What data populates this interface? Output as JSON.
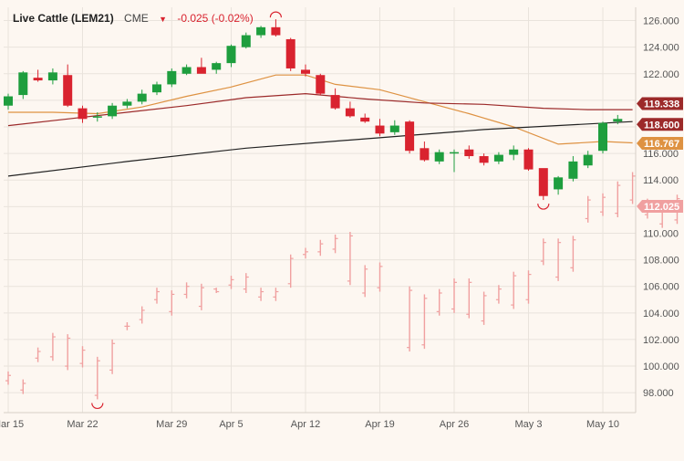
{
  "header": {
    "symbol": "Live Cattle (LEM21)",
    "exchange": "CME",
    "change_arrow": "▼",
    "change": "-0.025 (-0.02%)"
  },
  "colors": {
    "up": "#1e9e3e",
    "down": "#d9232f",
    "grid": "#e9e3dc",
    "background": "#fdf7f1",
    "ma_short": "#de9242",
    "ma_mid": "#9c2a2a",
    "ma_long": "#222222",
    "deferred_bars": "#f0a0a0"
  },
  "price_tags": [
    {
      "label": "119.338",
      "value": 119.338,
      "color": "#9c2a2a"
    },
    {
      "label": "118.600",
      "value": 118.6,
      "color": "#9c2a2a"
    },
    {
      "label": "116.767",
      "value": 116.767,
      "color": "#de9242"
    },
    {
      "label": "112.025",
      "value": 112.025,
      "color": "#f0a0a0"
    }
  ],
  "chart_data": {
    "type": "candlestick",
    "ylim": [
      96.5,
      127
    ],
    "y_ticks": [
      "98.000",
      "100.000",
      "102.000",
      "104.000",
      "106.000",
      "108.000",
      "110.000",
      "112.000",
      "114.000",
      "116.000",
      "118.000",
      "120.000",
      "122.000",
      "124.000",
      "126.000"
    ],
    "x_tick_labels": [
      "Mar 15",
      "Mar 22",
      "Mar 29",
      "Apr 5",
      "Apr 12",
      "Apr 19",
      "Apr 26",
      "May 3",
      "May 10"
    ],
    "x_tick_index": [
      0,
      5,
      11,
      15,
      20,
      25,
      30,
      35,
      40
    ],
    "dates": [
      "Mar 15",
      "Mar 16",
      "Mar 17",
      "Mar 18",
      "Mar 19",
      "Mar 22",
      "Mar 23",
      "Mar 24",
      "Mar 25",
      "Mar 26",
      "Mar 29",
      "Mar 30",
      "Mar 31",
      "Apr 1",
      "Apr 5",
      "Apr 6",
      "Apr 7",
      "Apr 8",
      "Apr 9",
      "Apr 12",
      "Apr 13",
      "Apr 14",
      "Apr 15",
      "Apr 16",
      "Apr 19",
      "Apr 20",
      "Apr 21",
      "Apr 22",
      "Apr 23",
      "Apr 26",
      "Apr 27",
      "Apr 28",
      "Apr 29",
      "Apr 30",
      "May 3",
      "May 4",
      "May 5",
      "May 6",
      "May 7",
      "May 10",
      "May 11",
      "May 12"
    ],
    "ohlc": [
      [
        119.6,
        120.5,
        119.3,
        120.3
      ],
      [
        120.4,
        122.2,
        120.1,
        122.1
      ],
      [
        121.7,
        122.3,
        121.4,
        121.5
      ],
      [
        121.5,
        122.4,
        121.2,
        122.1
      ],
      [
        121.9,
        122.7,
        119.5,
        119.6
      ],
      [
        119.4,
        119.6,
        118.3,
        118.6
      ],
      [
        118.7,
        119.1,
        118.4,
        118.8
      ],
      [
        118.8,
        119.8,
        118.6,
        119.6
      ],
      [
        119.6,
        120.1,
        119.4,
        119.9
      ],
      [
        119.9,
        120.8,
        119.7,
        120.5
      ],
      [
        120.6,
        121.4,
        120.4,
        121.2
      ],
      [
        121.2,
        122.4,
        121.0,
        122.2
      ],
      [
        122.0,
        122.7,
        121.9,
        122.5
      ],
      [
        122.5,
        123.2,
        122.1,
        122.0
      ],
      [
        122.3,
        122.9,
        122.0,
        122.8
      ],
      [
        122.8,
        124.2,
        122.5,
        124.1
      ],
      [
        124.0,
        125.1,
        123.9,
        124.9
      ],
      [
        124.9,
        125.6,
        124.7,
        125.5
      ],
      [
        125.5,
        126.1,
        124.8,
        124.9
      ],
      [
        124.6,
        124.7,
        122.2,
        122.4
      ],
      [
        122.3,
        122.7,
        121.8,
        122.0
      ],
      [
        121.9,
        122.0,
        120.4,
        120.5
      ],
      [
        120.4,
        120.9,
        119.3,
        119.4
      ],
      [
        119.4,
        119.9,
        118.7,
        118.8
      ],
      [
        118.7,
        119.0,
        118.3,
        118.4
      ],
      [
        118.1,
        118.6,
        117.3,
        117.5
      ],
      [
        117.6,
        118.5,
        117.4,
        118.1
      ],
      [
        118.4,
        118.5,
        116.0,
        116.2
      ],
      [
        116.4,
        116.9,
        115.4,
        115.5
      ],
      [
        115.4,
        116.3,
        115.2,
        116.1
      ],
      [
        116.1,
        116.3,
        114.6,
        116.1
      ],
      [
        116.3,
        116.6,
        115.6,
        115.8
      ],
      [
        115.8,
        116.0,
        115.1,
        115.3
      ],
      [
        115.4,
        116.1,
        115.2,
        115.9
      ],
      [
        115.9,
        116.6,
        115.5,
        116.3
      ],
      [
        116.3,
        116.4,
        114.7,
        114.8
      ],
      [
        114.9,
        114.8,
        112.5,
        112.8
      ],
      [
        113.3,
        114.3,
        112.9,
        114.2
      ],
      [
        114.1,
        115.8,
        113.9,
        115.4
      ],
      [
        115.1,
        116.2,
        114.9,
        115.9
      ],
      [
        116.2,
        118.4,
        116.0,
        118.3
      ],
      [
        118.4,
        118.9,
        118.2,
        118.6
      ]
    ],
    "deferred_bars": [
      {
        "i": 0,
        "hi": 99.6,
        "lo": 98.6
      },
      {
        "i": 1,
        "hi": 99.0,
        "lo": 97.9
      },
      {
        "i": 2,
        "hi": 101.4,
        "lo": 100.3
      },
      {
        "i": 3,
        "hi": 102.5,
        "lo": 100.4
      },
      {
        "i": 4,
        "hi": 102.4,
        "lo": 99.7
      },
      {
        "i": 5,
        "hi": 101.5,
        "lo": 99.9
      },
      {
        "i": 6,
        "hi": 100.7,
        "lo": 97.5
      },
      {
        "i": 7,
        "hi": 102.0,
        "lo": 99.4
      },
      {
        "i": 8,
        "hi": 103.3,
        "lo": 102.7
      },
      {
        "i": 9,
        "hi": 104.5,
        "lo": 103.2
      },
      {
        "i": 10,
        "hi": 105.9,
        "lo": 104.7
      },
      {
        "i": 11,
        "hi": 105.7,
        "lo": 103.8
      },
      {
        "i": 12,
        "hi": 106.3,
        "lo": 105.1
      },
      {
        "i": 13,
        "hi": 106.2,
        "lo": 104.2
      },
      {
        "i": 14,
        "hi": 105.9,
        "lo": 105.5
      },
      {
        "i": 15,
        "hi": 106.8,
        "lo": 105.8
      },
      {
        "i": 16,
        "hi": 107.0,
        "lo": 105.5
      },
      {
        "i": 17,
        "hi": 105.9,
        "lo": 104.9
      },
      {
        "i": 18,
        "hi": 105.9,
        "lo": 104.9
      },
      {
        "i": 19,
        "hi": 108.4,
        "lo": 105.9
      },
      {
        "i": 20,
        "hi": 108.9,
        "lo": 108.1
      },
      {
        "i": 21,
        "hi": 109.5,
        "lo": 108.3
      },
      {
        "i": 22,
        "hi": 109.9,
        "lo": 108.5
      },
      {
        "i": 23,
        "hi": 110.1,
        "lo": 106.1
      },
      {
        "i": 24,
        "hi": 107.6,
        "lo": 105.2
      },
      {
        "i": 25,
        "hi": 107.8,
        "lo": 105.6
      },
      {
        "i": 27,
        "hi": 106.0,
        "lo": 101.1
      },
      {
        "i": 28,
        "hi": 105.4,
        "lo": 101.3
      },
      {
        "i": 29,
        "hi": 105.8,
        "lo": 103.8
      },
      {
        "i": 30,
        "hi": 106.6,
        "lo": 104.0
      },
      {
        "i": 31,
        "hi": 106.6,
        "lo": 103.6
      },
      {
        "i": 32,
        "hi": 105.6,
        "lo": 103.1
      },
      {
        "i": 33,
        "hi": 106.1,
        "lo": 104.7
      },
      {
        "i": 34,
        "hi": 107.1,
        "lo": 104.3
      },
      {
        "i": 35,
        "hi": 107.2,
        "lo": 104.7
      },
      {
        "i": 36,
        "hi": 109.6,
        "lo": 107.6
      },
      {
        "i": 37,
        "hi": 109.6,
        "lo": 106.4
      },
      {
        "i": 38,
        "hi": 109.8,
        "lo": 107.1
      },
      {
        "i": 39,
        "hi": 112.8,
        "lo": 110.8
      },
      {
        "i": 40,
        "hi": 113.0,
        "lo": 111.3
      },
      {
        "i": 41,
        "hi": 113.9,
        "lo": 111.2
      },
      {
        "i": 42,
        "hi": 114.6,
        "lo": 112.2
      },
      {
        "i": 43,
        "hi": 112.6,
        "lo": 111.1
      },
      {
        "i": 44,
        "hi": 112.5,
        "lo": 110.4
      },
      {
        "i": 45,
        "hi": 112.9,
        "lo": 110.7
      },
      {
        "i": 46,
        "hi": 112.3,
        "lo": 111.6
      }
    ],
    "moving_averages": [
      {
        "color": "#de9242",
        "points": [
          [
            0,
            119.1
          ],
          [
            3,
            119.1
          ],
          [
            6,
            119.0
          ],
          [
            9,
            119.5
          ],
          [
            12,
            120.3
          ],
          [
            15,
            121.0
          ],
          [
            18,
            121.9
          ],
          [
            20,
            121.9
          ],
          [
            22,
            121.2
          ],
          [
            25,
            120.8
          ],
          [
            28,
            119.9
          ],
          [
            31,
            119.0
          ],
          [
            34,
            118.0
          ],
          [
            37,
            116.7
          ],
          [
            40,
            116.9
          ],
          [
            42,
            116.8
          ]
        ]
      },
      {
        "color": "#9c2a2a",
        "points": [
          [
            0,
            118.1
          ],
          [
            4,
            118.6
          ],
          [
            8,
            119.1
          ],
          [
            12,
            119.6
          ],
          [
            16,
            120.2
          ],
          [
            20,
            120.5
          ],
          [
            24,
            120.1
          ],
          [
            28,
            119.8
          ],
          [
            32,
            119.7
          ],
          [
            36,
            119.4
          ],
          [
            39,
            119.3
          ],
          [
            42,
            119.3
          ]
        ]
      },
      {
        "color": "#222222",
        "points": [
          [
            0,
            114.3
          ],
          [
            8,
            115.4
          ],
          [
            16,
            116.4
          ],
          [
            24,
            117.1
          ],
          [
            32,
            117.8
          ],
          [
            42,
            118.4
          ]
        ]
      }
    ]
  }
}
